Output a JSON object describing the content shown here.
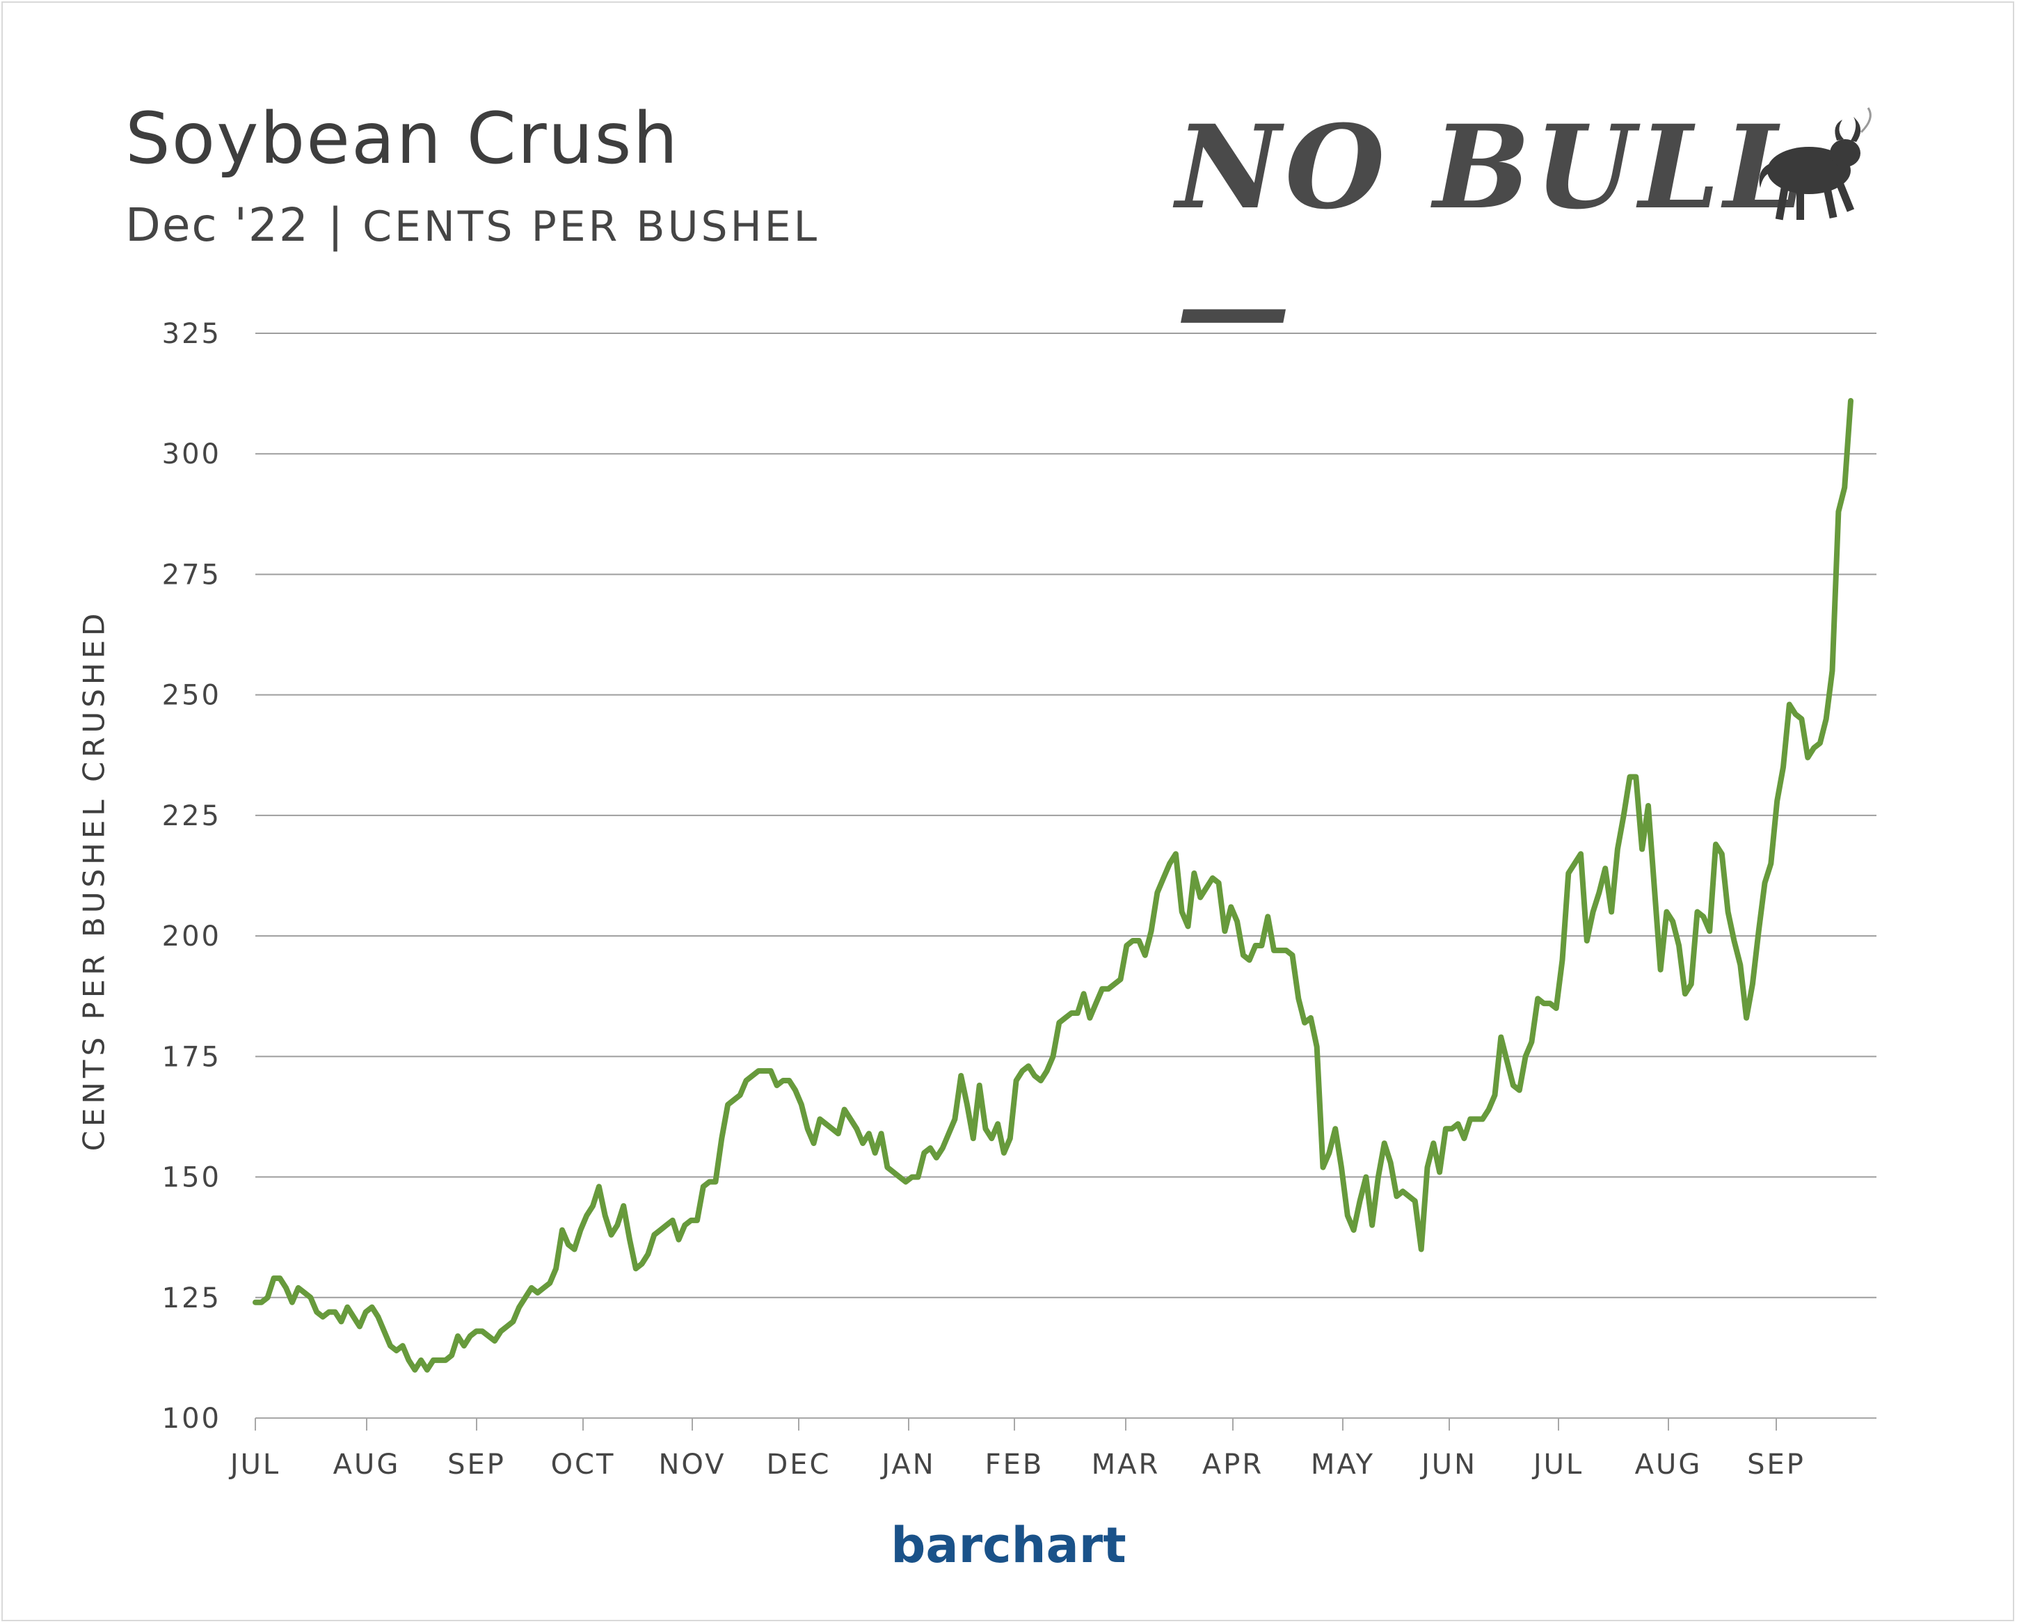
{
  "chart_data": {
    "type": "line",
    "title": "Soybean Crush",
    "subtitle_contract": "Dec '22",
    "subtitle_separator": "|",
    "subtitle_unit": "CENTS PER BUSHEL",
    "ylabel": "CENTS PER BUSHEL CRUSHED",
    "ylim": [
      100,
      325
    ],
    "yticks": [
      "100",
      "125",
      "150",
      "175",
      "200",
      "225",
      "250",
      "275",
      "300",
      "325"
    ],
    "xticks": [
      "JUL",
      "AUG",
      "SEP",
      "OCT",
      "NOV",
      "DEC",
      "JAN",
      "FEB",
      "MAR",
      "APR",
      "MAY",
      "JUN",
      "JUL",
      "AUG",
      "SEP"
    ],
    "grid": true,
    "line_color": "#679a3c",
    "series": [
      {
        "values": [
          124,
          124,
          125,
          129,
          129,
          127,
          124,
          127,
          126,
          125,
          122,
          121,
          122,
          122,
          120,
          123,
          121,
          119,
          122,
          123,
          121,
          118,
          115,
          114,
          115,
          112,
          110,
          112,
          110,
          112,
          112,
          112,
          113,
          117,
          115,
          117,
          118,
          118,
          117,
          116,
          118,
          119,
          120,
          123,
          125,
          127,
          126,
          127,
          128,
          131,
          139,
          136,
          135,
          139,
          142,
          144,
          148,
          142,
          138,
          140,
          144,
          137,
          131,
          132,
          134,
          138,
          139,
          140,
          141,
          137,
          140,
          141,
          141,
          148,
          149,
          149,
          158,
          165,
          166,
          167,
          170,
          171,
          172,
          172,
          172,
          169,
          170,
          170,
          168,
          165,
          160,
          157,
          162,
          161,
          160,
          159,
          164,
          162,
          160,
          157,
          159,
          155,
          159,
          152,
          151,
          150,
          149,
          150,
          150,
          155,
          156,
          154,
          156,
          159,
          162,
          171,
          165,
          158,
          169,
          160,
          158,
          161,
          155,
          158,
          170,
          172,
          173,
          171,
          170,
          172,
          175,
          182,
          183,
          184,
          184,
          188,
          183,
          186,
          189,
          189,
          190,
          191,
          198,
          199,
          199,
          196,
          201,
          209,
          212,
          215,
          217,
          205,
          202,
          213,
          208,
          210,
          212,
          211,
          201,
          206,
          203,
          196,
          195,
          198,
          198,
          204,
          197,
          197,
          197,
          196,
          187,
          182,
          183,
          177,
          152,
          155,
          160,
          152,
          142,
          139,
          145,
          150,
          140,
          150,
          157,
          153,
          146,
          147,
          146,
          145,
          135,
          152,
          157,
          151,
          160,
          160,
          161,
          158,
          162,
          162,
          162,
          164,
          167,
          179,
          174,
          169,
          168,
          175,
          178,
          187,
          186,
          186,
          185,
          195,
          213,
          215,
          217,
          199,
          205,
          209,
          214,
          205,
          218,
          225,
          233,
          233,
          218,
          227,
          210,
          193,
          205,
          203,
          198,
          188,
          190,
          205,
          204,
          201,
          219,
          217,
          205,
          199,
          194,
          183,
          190,
          201,
          211,
          215,
          228,
          235,
          248,
          246,
          245,
          237,
          239,
          240,
          245,
          255,
          288,
          293,
          311
        ]
      }
    ]
  },
  "logo_text": "NO BULL—",
  "brand": "barchart"
}
